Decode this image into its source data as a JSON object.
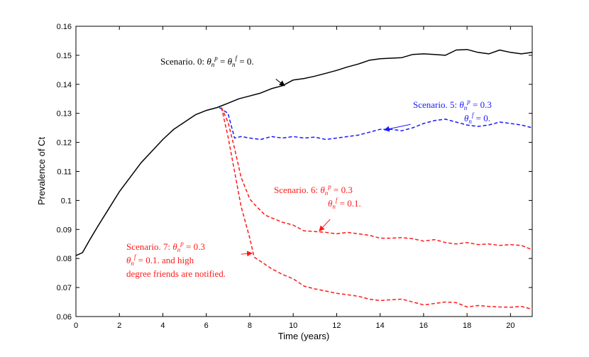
{
  "chart_data": {
    "type": "line",
    "title": "",
    "xlabel": "Time (years)",
    "ylabel": "Prevalence of Ct",
    "xlim": [
      0,
      21
    ],
    "ylim": [
      0.06,
      0.16
    ],
    "xticks": [
      0,
      2,
      4,
      6,
      8,
      10,
      12,
      14,
      16,
      18,
      20
    ],
    "xtick_labels": [
      "0",
      "2",
      "4",
      "6",
      "8",
      "10",
      "12",
      "14",
      "16",
      "18",
      "20"
    ],
    "yticks": [
      0.06,
      0.07,
      0.08,
      0.09,
      0.1,
      0.11,
      0.12,
      0.13,
      0.14,
      0.15,
      0.16
    ],
    "ytick_labels": [
      "0.06",
      "0.07",
      "0.08",
      "0.09",
      "0.1",
      "0.11",
      "0.12",
      "0.13",
      "0.14",
      "0.15",
      "0.16"
    ],
    "grid": false,
    "series": [
      {
        "name": "Scenario. 0",
        "color": "#000000",
        "dash": "solid",
        "x": [
          0,
          0.3,
          0.6,
          1,
          1.5,
          2,
          2.5,
          3,
          3.5,
          4,
          4.5,
          5,
          5.5,
          6,
          6.5,
          7,
          7.5,
          8,
          8.5,
          9,
          9.5,
          10,
          10.5,
          11,
          11.5,
          12,
          12.5,
          13,
          13.5,
          14,
          14.5,
          15,
          15.5,
          16,
          16.5,
          17,
          17.5,
          18,
          18.5,
          19,
          19.5,
          20,
          20.5,
          21
        ],
        "y": [
          0.081,
          0.082,
          0.086,
          0.091,
          0.097,
          0.103,
          0.108,
          0.113,
          0.117,
          0.121,
          0.1245,
          0.127,
          0.1295,
          0.131,
          0.132,
          0.1335,
          0.135,
          0.136,
          0.137,
          0.1385,
          0.1395,
          0.1415,
          0.142,
          0.1428,
          0.1438,
          0.1448,
          0.146,
          0.147,
          0.1483,
          0.1488,
          0.149,
          0.1492,
          0.1503,
          0.1505,
          0.1503,
          0.15,
          0.1518,
          0.152,
          0.151,
          0.1505,
          0.1518,
          0.151,
          0.1505,
          0.151
        ]
      },
      {
        "name": "Scenario. 5",
        "color": "#1a1aff",
        "dash": "dashed",
        "x": [
          6.6,
          7,
          7.3,
          7.6,
          8,
          8.5,
          9,
          9.5,
          10,
          10.5,
          11,
          11.5,
          12,
          12.5,
          13,
          13.5,
          14,
          14.5,
          15,
          15.5,
          16,
          16.5,
          17,
          17.5,
          18,
          18.5,
          19,
          19.5,
          20,
          20.5,
          21
        ],
        "y": [
          0.132,
          0.13,
          0.1215,
          0.122,
          0.1215,
          0.121,
          0.122,
          0.1215,
          0.122,
          0.1215,
          0.1218,
          0.121,
          0.1215,
          0.122,
          0.1225,
          0.1235,
          0.1245,
          0.1245,
          0.124,
          0.125,
          0.1265,
          0.1275,
          0.128,
          0.127,
          0.126,
          0.1255,
          0.126,
          0.127,
          0.1265,
          0.126,
          0.125
        ]
      },
      {
        "name": "Scenario. 6",
        "color": "#ff1a1a",
        "dash": "dashed",
        "x": [
          6.7,
          7,
          7.3,
          7.6,
          8,
          8.3,
          8.7,
          9,
          9.5,
          10,
          10.5,
          11,
          11.5,
          12,
          12.5,
          13,
          13.5,
          14,
          14.5,
          15,
          15.5,
          16,
          16.5,
          17,
          17.5,
          18,
          18.5,
          19,
          19.5,
          20,
          20.5,
          21
        ],
        "y": [
          0.132,
          0.127,
          0.118,
          0.108,
          0.1005,
          0.098,
          0.095,
          0.094,
          0.0925,
          0.0915,
          0.0895,
          0.0893,
          0.089,
          0.0885,
          0.089,
          0.0885,
          0.088,
          0.087,
          0.087,
          0.0872,
          0.0868,
          0.086,
          0.0865,
          0.0855,
          0.085,
          0.0855,
          0.0848,
          0.085,
          0.0845,
          0.0848,
          0.0845,
          0.083
        ]
      },
      {
        "name": "Scenario. 7",
        "color": "#ff1a1a",
        "dash": "dashed",
        "x": [
          6.7,
          7,
          7.3,
          7.6,
          8,
          8.2,
          8.5,
          9,
          9.5,
          10,
          10.5,
          11,
          11.5,
          12,
          12.5,
          13,
          13.5,
          14,
          14.5,
          15,
          15.5,
          16,
          16.5,
          17,
          17.5,
          18,
          18.5,
          19,
          19.5,
          20,
          20.5,
          21
        ],
        "y": [
          0.132,
          0.122,
          0.11,
          0.098,
          0.087,
          0.0805,
          0.079,
          0.0765,
          0.0745,
          0.073,
          0.0705,
          0.0695,
          0.0688,
          0.068,
          0.0675,
          0.067,
          0.066,
          0.0655,
          0.0658,
          0.066,
          0.065,
          0.064,
          0.0645,
          0.065,
          0.0648,
          0.0633,
          0.0638,
          0.0635,
          0.0633,
          0.0632,
          0.0635,
          0.0625
        ]
      }
    ],
    "annotations": [
      {
        "color": "#000000",
        "lines": [
          "Scenario. 0: θnp = θnf = 0."
        ],
        "arrow_from": [
          9.2,
          0.1418
        ],
        "arrow_to": [
          9.6,
          0.1395
        ]
      },
      {
        "color": "#1a1aff",
        "lines": [
          "Scenario. 5: θnp = 0.3",
          "θnf = 0."
        ],
        "arrow_from": [
          15.4,
          0.1262
        ],
        "arrow_to": [
          14.2,
          0.1243
        ]
      },
      {
        "color": "#ff1a1a",
        "lines": [
          "Scenario. 6: θnp = 0.3",
          "θnf = 0.1."
        ],
        "arrow_from": [
          11.7,
          0.0935
        ],
        "arrow_to": [
          11.2,
          0.0895
        ]
      },
      {
        "color": "#ff1a1a",
        "lines": [
          "Scenario. 7: θnp = 0.3",
          "θnf = 0.1. and high",
          "degree friends are notified."
        ],
        "arrow_from": [
          7.6,
          0.0815
        ],
        "arrow_to": [
          8.1,
          0.0818
        ]
      }
    ]
  }
}
